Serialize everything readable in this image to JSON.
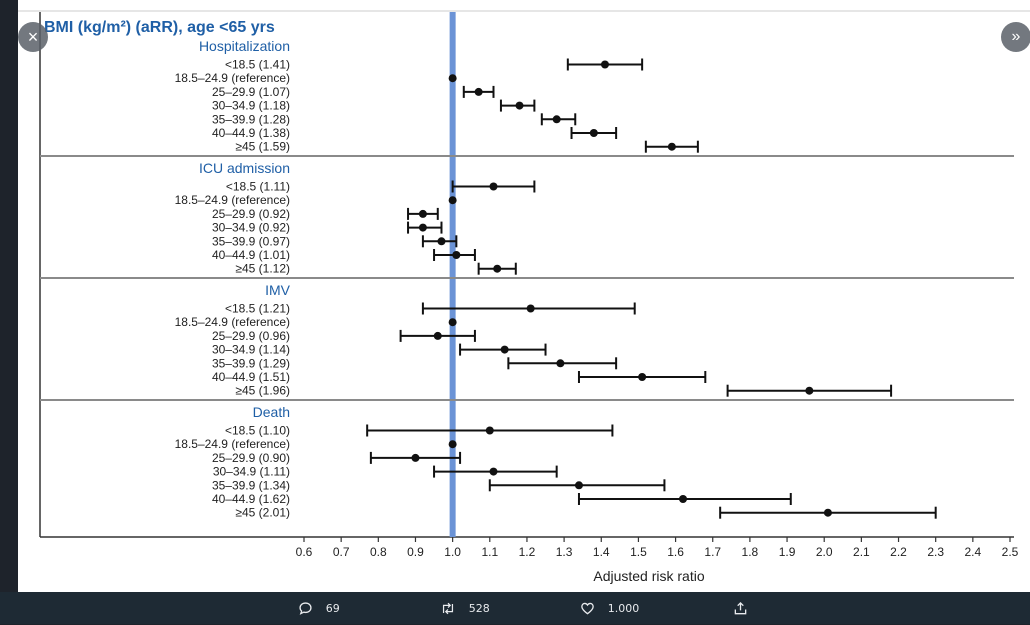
{
  "viewer": {
    "close_icon": "×",
    "next_icon": "»"
  },
  "actions": {
    "reply_count": "69",
    "retweet_count": "528",
    "like_count": "1.000",
    "reply_icon": "speech-bubble-icon",
    "retweet_icon": "retweet-icon",
    "like_icon": "heart-icon",
    "share_icon": "share-icon"
  },
  "chart_data": {
    "type": "forest",
    "title": "BMI (kg/m²) (aRR), age <65 yrs",
    "xlabel": "Adjusted risk ratio",
    "xlim": [
      0.6,
      2.5
    ],
    "xticks": [
      "0.6",
      "0.7",
      "0.8",
      "0.9",
      "1.0",
      "1.1",
      "1.2",
      "1.3",
      "1.4",
      "1.5",
      "1.6",
      "1.7",
      "1.8",
      "1.9",
      "2.0",
      "2.1",
      "2.2",
      "2.3",
      "2.4",
      "2.5"
    ],
    "reference_line": 1.0,
    "reference_color": "#6b93d6",
    "heading_color": "#1f5fa6",
    "panels": [
      {
        "name": "Hospitalization",
        "rows": [
          {
            "label": "<18.5 (1.41)",
            "est": 1.41,
            "lo": 1.31,
            "hi": 1.51
          },
          {
            "label": "18.5–24.9 (reference)",
            "est": 1.0,
            "lo": null,
            "hi": null
          },
          {
            "label": "25–29.9 (1.07)",
            "est": 1.07,
            "lo": 1.03,
            "hi": 1.11
          },
          {
            "label": "30–34.9 (1.18)",
            "est": 1.18,
            "lo": 1.13,
            "hi": 1.22
          },
          {
            "label": "35–39.9 (1.28)",
            "est": 1.28,
            "lo": 1.24,
            "hi": 1.33
          },
          {
            "label": "40–44.9 (1.38)",
            "est": 1.38,
            "lo": 1.32,
            "hi": 1.44
          },
          {
            "label": "≥45 (1.59)",
            "est": 1.59,
            "lo": 1.52,
            "hi": 1.66
          }
        ]
      },
      {
        "name": "ICU admission",
        "rows": [
          {
            "label": "<18.5 (1.11)",
            "est": 1.11,
            "lo": 1.0,
            "hi": 1.22
          },
          {
            "label": "18.5–24.9 (reference)",
            "est": 1.0,
            "lo": null,
            "hi": null
          },
          {
            "label": "25–29.9 (0.92)",
            "est": 0.92,
            "lo": 0.88,
            "hi": 0.96
          },
          {
            "label": "30–34.9 (0.92)",
            "est": 0.92,
            "lo": 0.88,
            "hi": 0.97
          },
          {
            "label": "35–39.9 (0.97)",
            "est": 0.97,
            "lo": 0.92,
            "hi": 1.01
          },
          {
            "label": "40–44.9 (1.01)",
            "est": 1.01,
            "lo": 0.95,
            "hi": 1.06
          },
          {
            "label": "≥45 (1.12)",
            "est": 1.12,
            "lo": 1.07,
            "hi": 1.17
          }
        ]
      },
      {
        "name": "IMV",
        "rows": [
          {
            "label": "<18.5 (1.21)",
            "est": 1.21,
            "lo": 0.92,
            "hi": 1.49
          },
          {
            "label": "18.5–24.9 (reference)",
            "est": 1.0,
            "lo": null,
            "hi": null
          },
          {
            "label": "25–29.9 (0.96)",
            "est": 0.96,
            "lo": 0.86,
            "hi": 1.06
          },
          {
            "label": "30–34.9 (1.14)",
            "est": 1.14,
            "lo": 1.02,
            "hi": 1.25
          },
          {
            "label": "35–39.9 (1.29)",
            "est": 1.29,
            "lo": 1.15,
            "hi": 1.44
          },
          {
            "label": "40–44.9 (1.51)",
            "est": 1.51,
            "lo": 1.34,
            "hi": 1.68
          },
          {
            "label": "≥45 (1.96)",
            "est": 1.96,
            "lo": 1.74,
            "hi": 2.18
          }
        ]
      },
      {
        "name": "Death",
        "rows": [
          {
            "label": "<18.5 (1.10)",
            "est": 1.1,
            "lo": 0.77,
            "hi": 1.43
          },
          {
            "label": "18.5–24.9 (reference)",
            "est": 1.0,
            "lo": null,
            "hi": null
          },
          {
            "label": "25–29.9 (0.90)",
            "est": 0.9,
            "lo": 0.78,
            "hi": 1.02
          },
          {
            "label": "30–34.9 (1.11)",
            "est": 1.11,
            "lo": 0.95,
            "hi": 1.28
          },
          {
            "label": "35–39.9 (1.34)",
            "est": 1.34,
            "lo": 1.1,
            "hi": 1.57
          },
          {
            "label": "40–44.9 (1.62)",
            "est": 1.62,
            "lo": 1.34,
            "hi": 1.91
          },
          {
            "label": "≥45 (2.01)",
            "est": 2.01,
            "lo": 1.72,
            "hi": 2.3
          }
        ]
      }
    ]
  }
}
